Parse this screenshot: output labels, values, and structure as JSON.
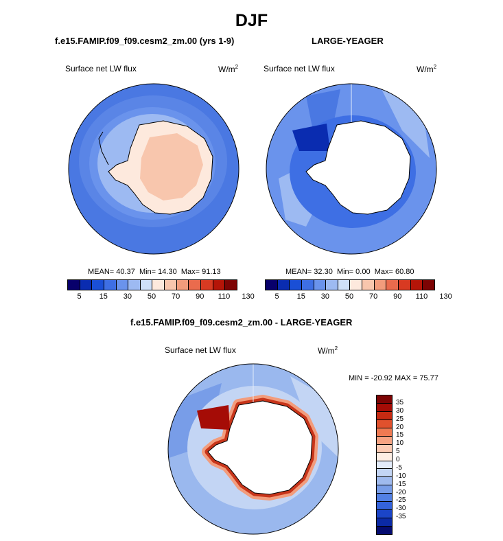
{
  "figure_title": "DJF",
  "panel_left": {
    "title": "f.e15.FAMIP.f09_f09.cesm2_zm.00 (yrs 1-9)",
    "variable": "Surface net LW flux",
    "unit": "W/m",
    "unit_exp": "2",
    "mean_label": "MEAN=",
    "mean_value": "40.37",
    "min_label": "Min=",
    "min_value": "14.30",
    "max_label": "Max=",
    "max_value": "91.13"
  },
  "panel_right": {
    "title": "LARGE-YEAGER",
    "variable": "Surface net LW flux",
    "unit": "W/m",
    "unit_exp": "2",
    "mean_label": "MEAN=",
    "mean_value": "32.30",
    "min_label": "Min=",
    "min_value": "0.00",
    "max_label": "Max=",
    "max_value": "60.80"
  },
  "panel_diff": {
    "title": "f.e15.FAMIP.f09_f09.cesm2_zm.00 - LARGE-YEAGER",
    "variable": "Surface net LW flux",
    "unit": "W/m",
    "unit_exp": "2",
    "minmax": "MIN = -20.92 MAX =  75.77"
  },
  "abs_colorbar": {
    "colors": [
      "#08006b",
      "#0a2cb0",
      "#1a4fd6",
      "#3e6fe4",
      "#6a93ec",
      "#9dbaf2",
      "#cfe0f8",
      "#fde9dd",
      "#f8c6ad",
      "#f29c7c",
      "#ea6b4d",
      "#d83a22",
      "#b51508",
      "#7d0404"
    ],
    "tick_labels": [
      "5",
      "15",
      "30",
      "50",
      "70",
      "90",
      "110",
      "130"
    ]
  },
  "diff_colorbar": {
    "colors": [
      "#7d0404",
      "#a50c06",
      "#c62a12",
      "#e0512d",
      "#ef7a52",
      "#f6a382",
      "#fbcbb4",
      "#fdeee4",
      "#e3ecfa",
      "#c3d5f4",
      "#9fbaee",
      "#789de8",
      "#5280e4",
      "#3463dc",
      "#1b45c8",
      "#0b2aa6",
      "#050c70"
    ],
    "tick_labels": [
      "35",
      "30",
      "25",
      "20",
      "15",
      "10",
      "5",
      "0",
      "-5",
      "-10",
      "-15",
      "-20",
      "-25",
      "-30",
      "-35"
    ]
  },
  "colors": {
    "ocean_abs": "#4a78e2",
    "land_abs": "#f7d4c2",
    "ocean_diff": "#9ab8ee",
    "coast_diff": "#c8351a",
    "land_missing": "#ffffff"
  }
}
